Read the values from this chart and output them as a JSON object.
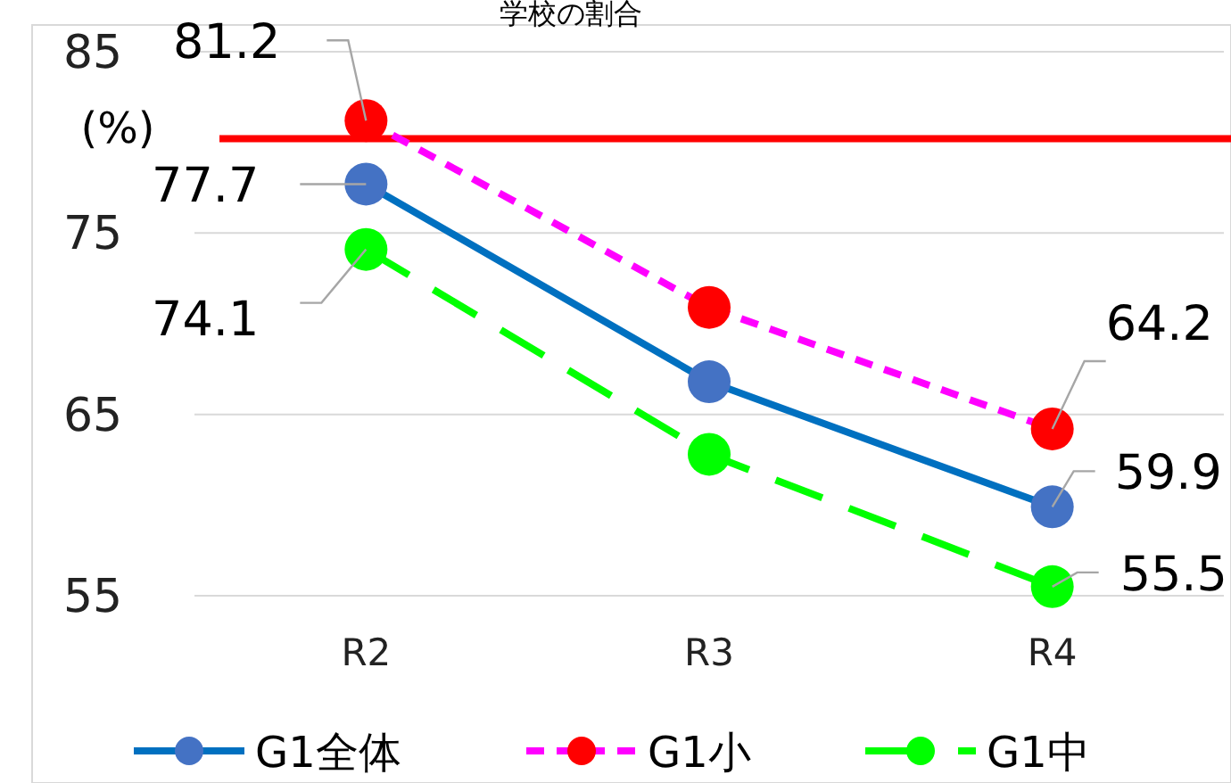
{
  "chart_data": {
    "type": "line",
    "title": "学校の割合",
    "ylabel": "(%)",
    "categories": [
      "R2",
      "R3",
      "R4"
    ],
    "series": [
      {
        "name": "G1全体",
        "color": "#4472c4",
        "values": [
          77.7,
          66.8,
          59.9
        ],
        "value_labels": [
          "77.7",
          null,
          "59.9"
        ],
        "line_style": "solid"
      },
      {
        "name": "G1小",
        "color": "#ff0000",
        "values": [
          81.2,
          70.9,
          64.2
        ],
        "value_labels": [
          "81.2",
          null,
          "64.2"
        ],
        "line_style": "dashed"
      },
      {
        "name": "G1中",
        "color": "#00ff00",
        "values": [
          74.1,
          62.8,
          55.5
        ],
        "value_labels": [
          "74.1",
          null,
          "55.5"
        ],
        "line_style": "dashed"
      }
    ],
    "ylim": [
      55,
      85
    ],
    "yticks": [
      55,
      65,
      75,
      85
    ],
    "ref_lines": [
      {
        "axis": "y",
        "value": 80.2,
        "color": "#ff0000"
      }
    ],
    "grid": "y",
    "legend": "bottom",
    "marker": "circle"
  }
}
